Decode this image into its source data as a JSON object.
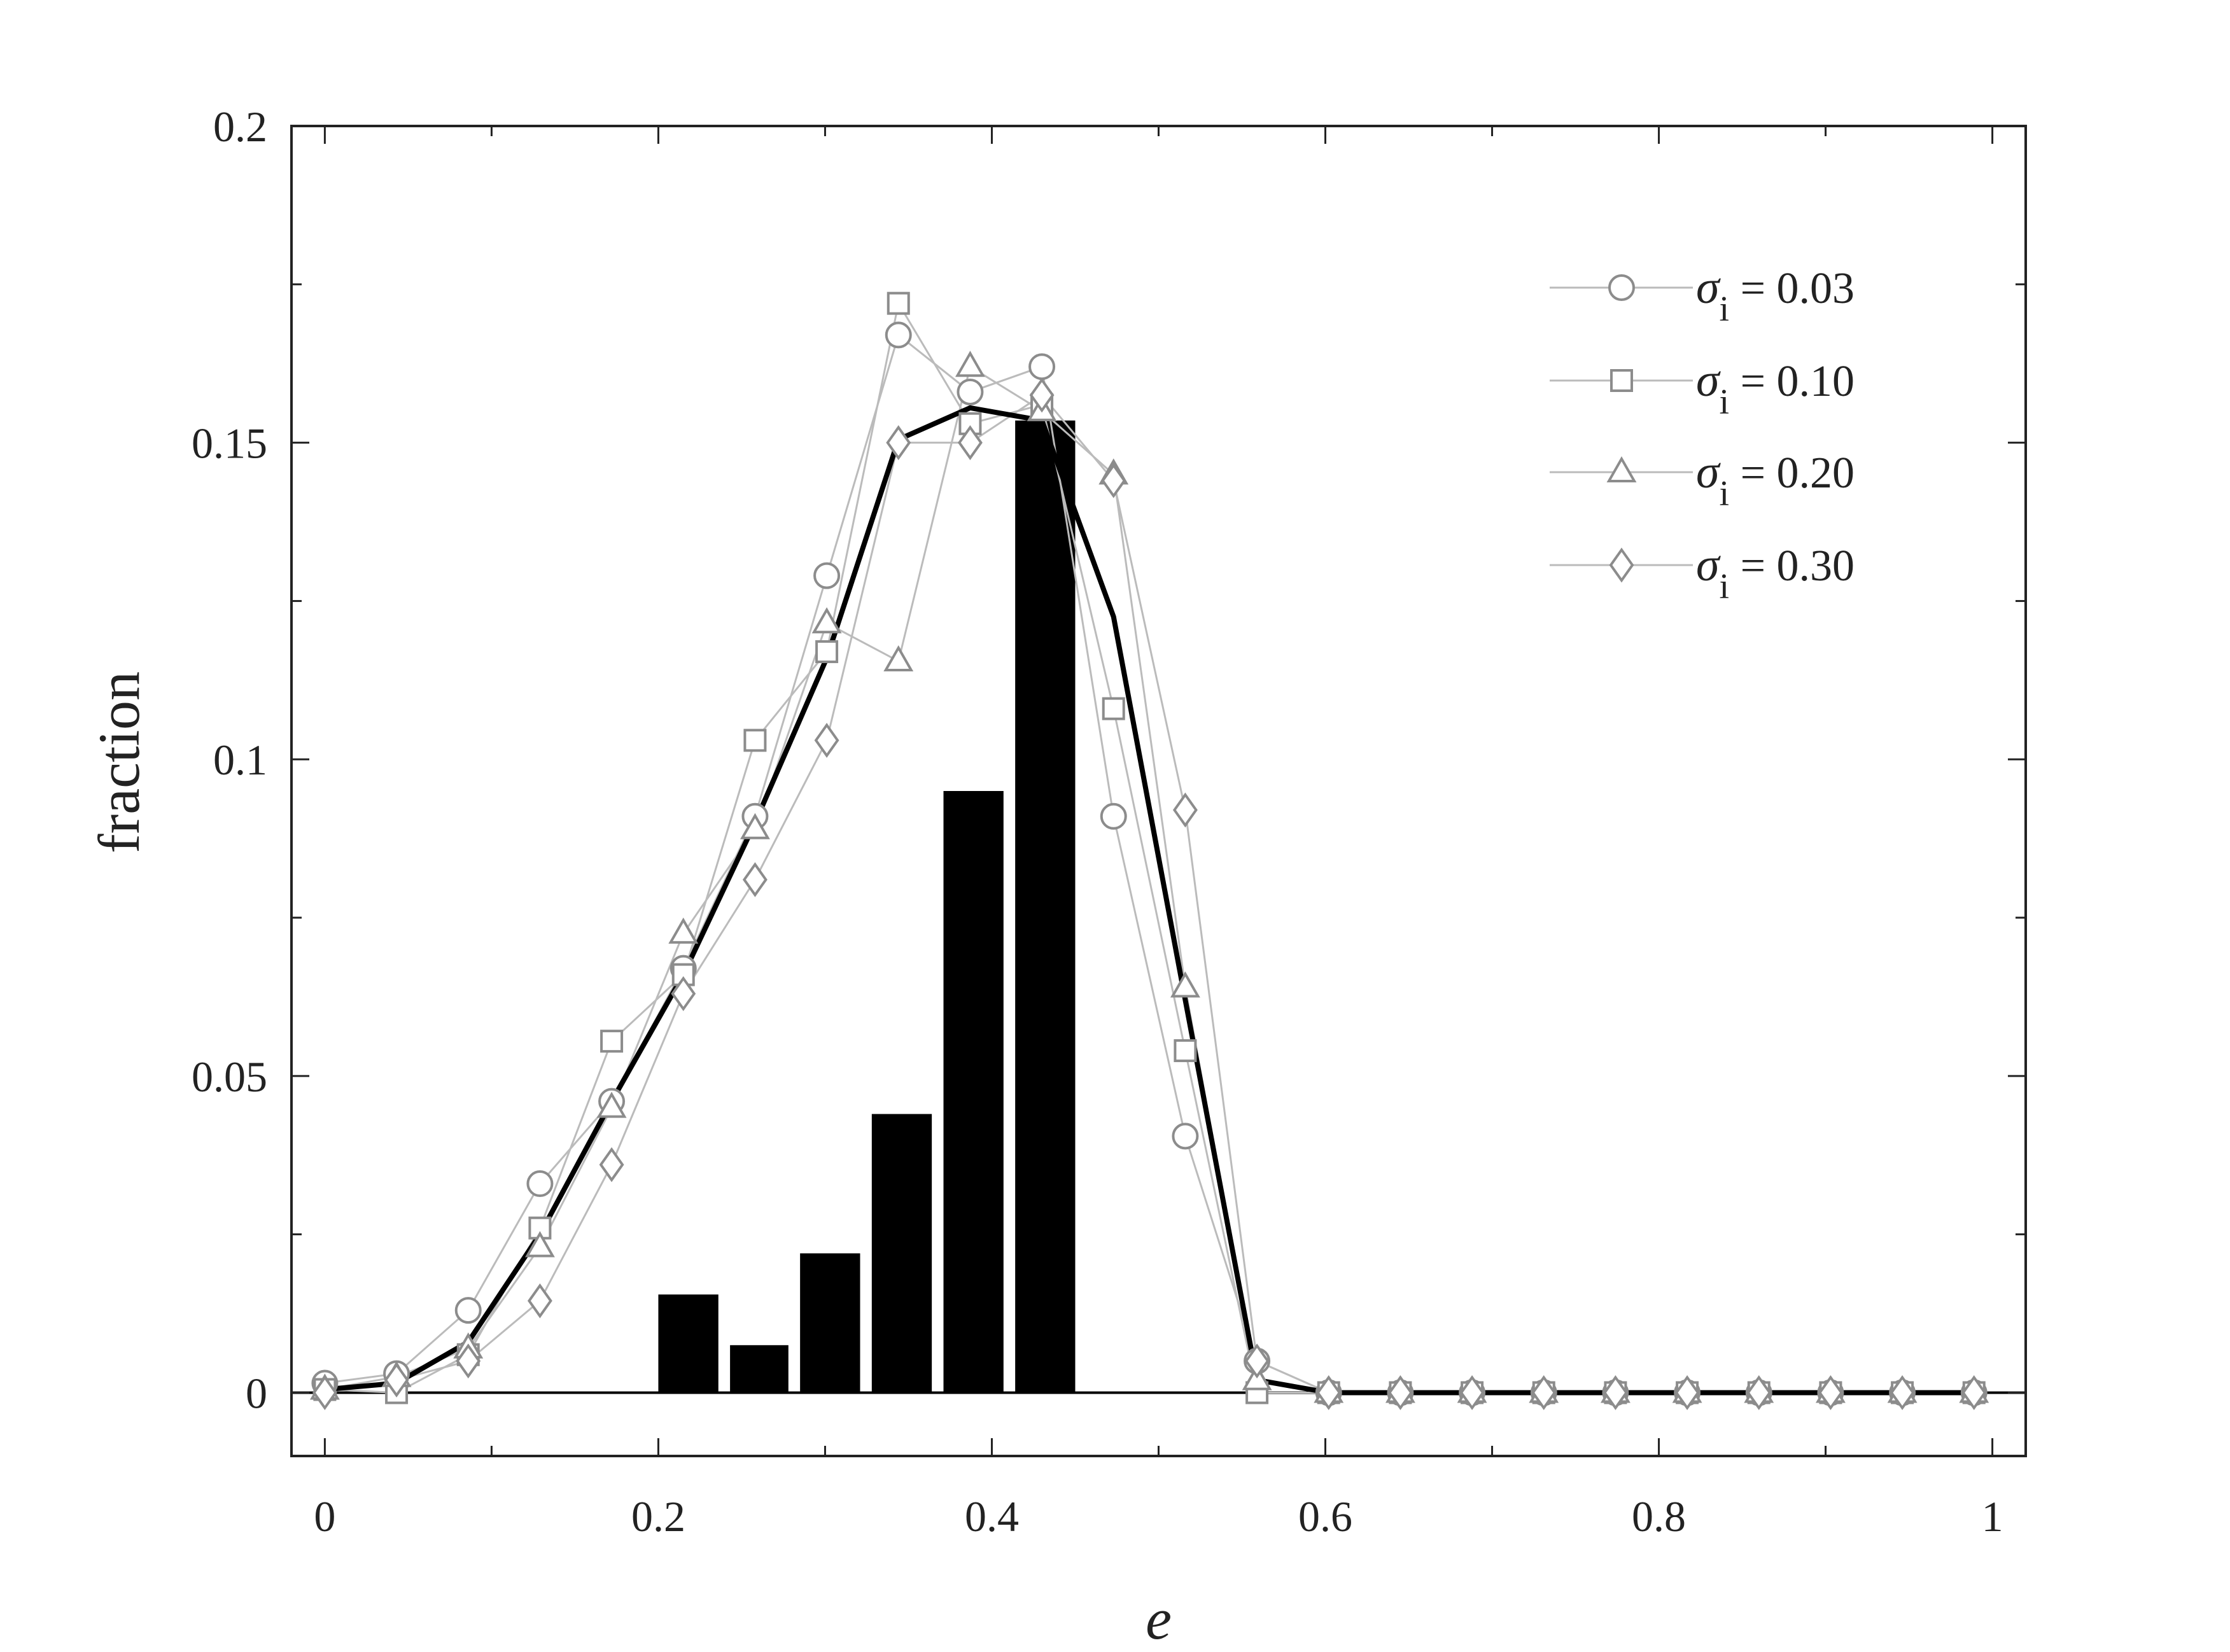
{
  "chart_data": {
    "type": "line",
    "title": "",
    "xlabel": "e",
    "ylabel": "fraction",
    "xlim": [
      -0.02,
      1.02
    ],
    "ylim": [
      -0.01,
      0.2
    ],
    "x_ticks": [
      0,
      0.2,
      0.4,
      0.6,
      0.8,
      1
    ],
    "x_tick_labels": [
      "0",
      "0.2",
      "0.4",
      "0.6",
      "0.8",
      "1"
    ],
    "y_ticks": [
      0,
      0.05,
      0.1,
      0.15,
      0.2
    ],
    "y_tick_labels": [
      "0",
      "0.05",
      "0.1",
      "0.15",
      "0.2"
    ],
    "grid": false,
    "legend_position": "top-right",
    "x": [
      0,
      0.043,
      0.086,
      0.129,
      0.172,
      0.215,
      0.258,
      0.301,
      0.344,
      0.387,
      0.43,
      0.473,
      0.516,
      0.559,
      0.602,
      0.645,
      0.688,
      0.731,
      0.774,
      0.817,
      0.86,
      0.903,
      0.946,
      0.989
    ],
    "series": [
      {
        "name": "σi = 0.03",
        "marker": "circle",
        "legend_prefix": "σ",
        "legend_sub": "i",
        "legend_suffix": " = 0.03",
        "values": [
          0.0015,
          0.003,
          0.013,
          0.033,
          0.046,
          0.067,
          0.091,
          0.129,
          0.167,
          0.158,
          0.162,
          0.091,
          0.0405,
          0.005,
          0,
          0,
          0,
          0,
          0,
          0,
          0,
          0,
          0,
          0
        ]
      },
      {
        "name": "σi = 0.10",
        "marker": "square",
        "legend_prefix": "σ",
        "legend_sub": "i",
        "legend_suffix": " = 0.10",
        "values": [
          0.0005,
          0.0,
          0.006,
          0.026,
          0.0555,
          0.066,
          0.103,
          0.117,
          0.172,
          0.153,
          0.156,
          0.108,
          0.054,
          0.0,
          0,
          0,
          0,
          0,
          0,
          0,
          0,
          0,
          0,
          0
        ]
      },
      {
        "name": "σi = 0.20",
        "marker": "triangle",
        "legend_prefix": "σ",
        "legend_sub": "i",
        "legend_suffix": " = 0.20",
        "values": [
          0.0005,
          0.0025,
          0.007,
          0.023,
          0.045,
          0.0725,
          0.089,
          0.1215,
          0.1155,
          0.162,
          0.155,
          0.145,
          0.064,
          0.002,
          0,
          0,
          0,
          0,
          0,
          0,
          0,
          0,
          0,
          0
        ]
      },
      {
        "name": "σi = 0.30",
        "marker": "diamond",
        "legend_prefix": "σ",
        "legend_sub": "i",
        "legend_suffix": " = 0.30",
        "values": [
          0.0,
          0.002,
          0.005,
          0.0145,
          0.036,
          0.063,
          0.081,
          0.103,
          0.15,
          0.15,
          0.1575,
          0.144,
          0.092,
          0.005,
          0,
          0,
          0,
          0,
          0,
          0,
          0,
          0,
          0,
          0
        ]
      }
    ],
    "mean_line": {
      "x": [
        0,
        0.043,
        0.086,
        0.129,
        0.172,
        0.215,
        0.258,
        0.301,
        0.344,
        0.387,
        0.43,
        0.473,
        0.516,
        0.559,
        0.602,
        0.645,
        0.688,
        0.731,
        0.774,
        0.817,
        0.86,
        0.903,
        0.946,
        0.989
      ],
      "values": [
        0.0005,
        0.0015,
        0.008,
        0.025,
        0.046,
        0.066,
        0.09,
        0.116,
        0.1505,
        0.1555,
        0.1535,
        0.1225,
        0.062,
        0.002,
        0,
        0,
        0,
        0,
        0,
        0,
        0,
        0,
        0,
        0
      ]
    },
    "bars": {
      "x_start": [
        0.2,
        0.243,
        0.285,
        0.328,
        0.371,
        0.414
      ],
      "x_end": [
        0.236,
        0.278,
        0.321,
        0.364,
        0.407,
        0.45
      ],
      "values": [
        0.0155,
        0.0075,
        0.022,
        0.044,
        0.095,
        0.1535
      ]
    },
    "colors": {
      "series_line": "#bbbbbb",
      "marker_stroke": "#8c8c8c",
      "mean_line": "#000000",
      "bars": "#000000",
      "frame": "#222222"
    }
  }
}
